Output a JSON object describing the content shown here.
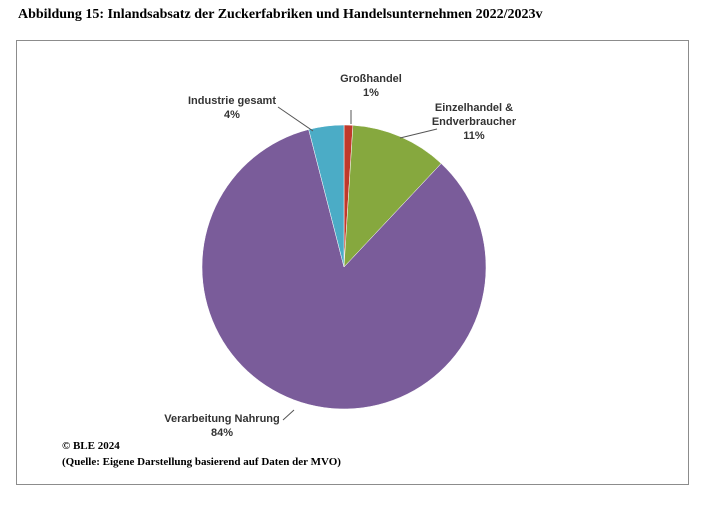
{
  "title": "Abbildung 15: Inlandsabsatz der Zuckerfabriken und Handelsunternehmen 2022/2023v",
  "footer": {
    "copyright": "© BLE  2024",
    "source": "(Quelle: Eigene Darstellung basierend auf Daten der MVO)"
  },
  "chart_data": {
    "type": "pie",
    "title": "",
    "slices": [
      {
        "label": "Großhandel",
        "label_lines": [
          "Großhandel"
        ],
        "value": 1,
        "value_label": "1%",
        "color": "#C0392B"
      },
      {
        "label": "Einzelhandel & Endverbraucher",
        "label_lines": [
          "Einzelhandel &",
          "Endverbraucher"
        ],
        "value": 11,
        "value_label": "11%",
        "color": "#86A83E"
      },
      {
        "label": "Verarbeitung Nahrung",
        "label_lines": [
          "Verarbeitung Nahrung"
        ],
        "value": 84,
        "value_label": "84%",
        "color": "#7A5C9A"
      },
      {
        "label": "Industrie gesamt",
        "label_lines": [
          "Industrie gesamt"
        ],
        "value": 4,
        "value_label": "4%",
        "color": "#4BACC6"
      }
    ],
    "start_angle_deg": 0,
    "direction": "clockwise",
    "legend": "none",
    "data_labels": "outside with leader lines"
  }
}
